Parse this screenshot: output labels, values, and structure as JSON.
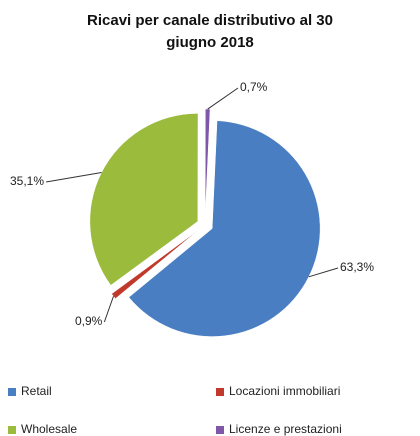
{
  "chart_data": {
    "type": "pie",
    "title": "Ricavi per canale distributivo al 30 giugno 2018",
    "categories": [
      "Retail",
      "Locazioni immobiliari",
      "Wholesale",
      "Licenze e prestazioni"
    ],
    "values": [
      63.3,
      0.9,
      35.1,
      0.7
    ],
    "value_labels": [
      "63,3%",
      "0,9%",
      "35,1%",
      "0,7%"
    ],
    "colors": [
      "#4a7ec2",
      "#c0392b",
      "#9bbb3c",
      "#7e57a8"
    ],
    "legend": "bottom"
  }
}
